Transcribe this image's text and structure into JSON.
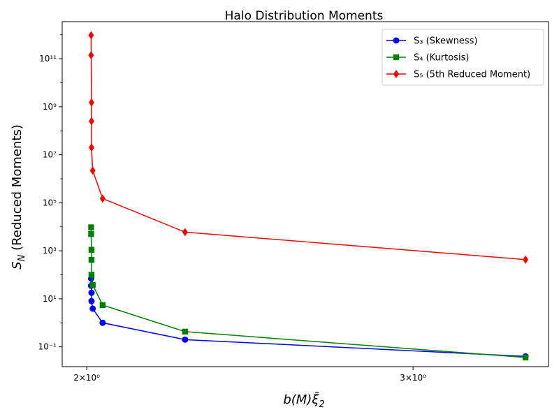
{
  "chart_data": {
    "type": "line",
    "title": "Halo Distribution Moments",
    "xlabel": "b(M)ξ̄₂",
    "ylabel": "S_N (Reduced Moments)",
    "x_scale": "log",
    "y_scale": "log",
    "xlim": [
      1.94,
      3.55
    ],
    "ylim": [
      0.015,
      3500000000000.0
    ],
    "x_ticks": [
      {
        "value": 2,
        "label": "2×10⁰"
      },
      {
        "value": 3,
        "label": "3×10⁰"
      }
    ],
    "y_ticks": [
      {
        "value": 0.1,
        "label": "10⁻¹"
      },
      {
        "value": 10,
        "label": "10¹"
      },
      {
        "value": 1000,
        "label": "10³"
      },
      {
        "value": 100000,
        "label": "10⁵"
      },
      {
        "value": 10000000,
        "label": "10⁷"
      },
      {
        "value": 1000000000,
        "label": "10⁹"
      },
      {
        "value": 100000000000,
        "label": "10¹¹"
      }
    ],
    "grid": false,
    "legend_position": "top-right",
    "series": [
      {
        "name": "S₃ (Skewness)",
        "color": "#0000ff",
        "marker": "circle",
        "points": [
          {
            "x": 2.011,
            "y": 70
          },
          {
            "x": 2.011,
            "y": 35
          },
          {
            "x": 2.012,
            "y": 18
          },
          {
            "x": 2.012,
            "y": 8
          },
          {
            "x": 2.015,
            "y": 3.9
          },
          {
            "x": 2.04,
            "y": 1.0
          },
          {
            "x": 2.26,
            "y": 0.2
          },
          {
            "x": 3.45,
            "y": 0.04
          }
        ]
      },
      {
        "name": "S₄ (Kurtosis)",
        "color": "#008000",
        "marker": "square",
        "points": [
          {
            "x": 2.011,
            "y": 9500
          },
          {
            "x": 2.011,
            "y": 5000
          },
          {
            "x": 2.012,
            "y": 1100
          },
          {
            "x": 2.012,
            "y": 420
          },
          {
            "x": 2.012,
            "y": 100
          },
          {
            "x": 2.015,
            "y": 38
          },
          {
            "x": 2.04,
            "y": 5.5
          },
          {
            "x": 2.26,
            "y": 0.43
          },
          {
            "x": 3.45,
            "y": 0.036
          }
        ]
      },
      {
        "name": "S₅ (5th Reduced Moment)",
        "color": "#ff0000",
        "marker": "diamond",
        "points": [
          {
            "x": 2.011,
            "y": 950000000000
          },
          {
            "x": 2.011,
            "y": 140000000000
          },
          {
            "x": 2.012,
            "y": 1500000000
          },
          {
            "x": 2.012,
            "y": 250000000
          },
          {
            "x": 2.012,
            "y": 20000000
          },
          {
            "x": 2.015,
            "y": 2200000
          },
          {
            "x": 2.04,
            "y": 150000
          },
          {
            "x": 2.26,
            "y": 6000
          },
          {
            "x": 3.45,
            "y": 430
          }
        ]
      }
    ]
  }
}
